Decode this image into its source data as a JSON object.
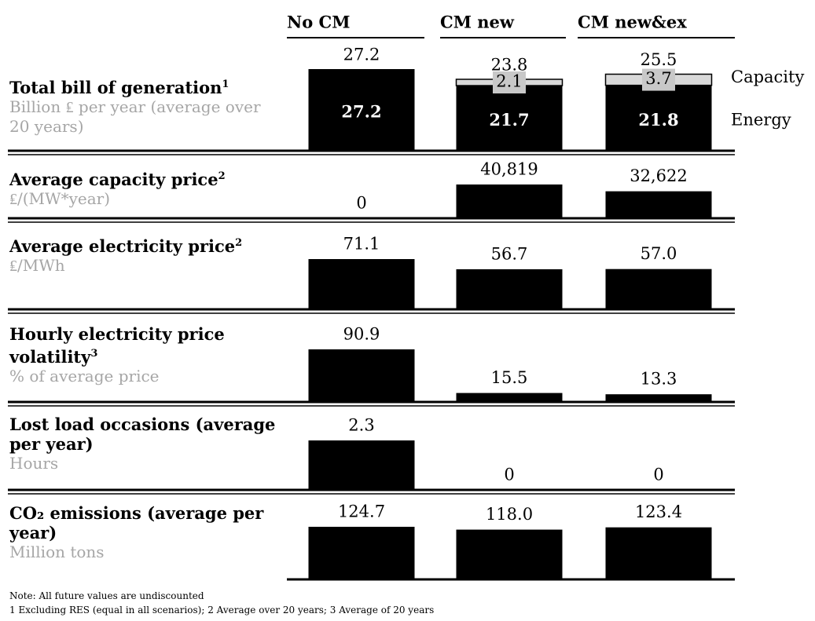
{
  "chart_data": {
    "type": "bar",
    "categories": [
      "No CM",
      "CM new",
      "CM new&ex"
    ],
    "panels": [
      {
        "type": "stacked-bar",
        "title": "Total bill of generation",
        "title_note": "1",
        "subtitle": "Billion ₤ per year (average over 20 years)",
        "series": [
          {
            "name": "Energy",
            "color": "#000000",
            "values": [
              27.2,
              21.7,
              21.8
            ]
          },
          {
            "name": "Capacity",
            "color": "#d9d9d9",
            "values": [
              null,
              2.1,
              3.7
            ]
          }
        ],
        "totals": [
          27.2,
          23.8,
          25.5
        ]
      },
      {
        "type": "bar",
        "title": "Average capacity price",
        "title_note": "2",
        "subtitle": "₤/(MW*year)",
        "color": "#000000",
        "values": [
          0,
          40819,
          32622
        ],
        "value_labels": [
          "0",
          "40,819",
          "32,622"
        ]
      },
      {
        "type": "bar",
        "title": "Average electricity price",
        "title_note": "2",
        "subtitle": "₤/MWh",
        "color": "#000000",
        "values": [
          71.1,
          56.7,
          57.0
        ],
        "value_labels": [
          "71.1",
          "56.7",
          "57.0"
        ]
      },
      {
        "type": "bar",
        "title": "Hourly electricity price volatility",
        "title_note": "3",
        "subtitle": "% of average price",
        "color": "#000000",
        "values": [
          90.9,
          15.5,
          13.3
        ]
      },
      {
        "type": "bar",
        "title": "Lost load occasions (average per year)",
        "subtitle": "Hours",
        "color": "#000000",
        "values": [
          2.3,
          0,
          0
        ]
      },
      {
        "type": "bar",
        "title": "CO₂ emissions (average per year)",
        "subtitle": "Million tons",
        "color": "#000000",
        "values": [
          124.7,
          118.0,
          123.4
        ],
        "value_labels": [
          "124.7",
          "118.0",
          "123.4"
        ]
      }
    ],
    "notes": [
      "Note: All future values are undiscounted",
      "1 Excluding RES (equal in all scenarios);  2 Average over 20 years;  3 Average of 20 years"
    ]
  }
}
